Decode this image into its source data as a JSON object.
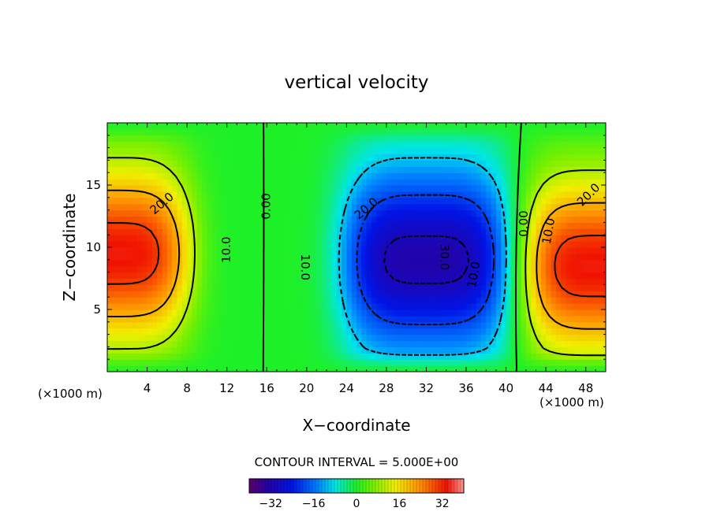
{
  "chart_data": {
    "type": "heatmap",
    "title": "vertical velocity",
    "xlabel": "X−coordinate",
    "ylabel": "Z−coordinate",
    "x_unit_left": "(×1000 m)",
    "x_unit_right": "(×1000 m)",
    "xlim": [
      0,
      50
    ],
    "ylim": [
      0,
      20
    ],
    "x_ticks": [
      4,
      8,
      12,
      16,
      20,
      24,
      28,
      32,
      36,
      40,
      44,
      48
    ],
    "y_ticks": [
      5,
      10,
      15
    ],
    "contour_interval_label": "CONTOUR INTERVAL = 5.000E+00",
    "contour_interval": 5,
    "contour_labels": [
      {
        "text": "20.0",
        "x": 5.5,
        "z": 13.5,
        "angle": -40
      },
      {
        "text": "10.0",
        "x": 12.0,
        "z": 9.8,
        "angle": -90
      },
      {
        "text": "0.00",
        "x": 16.0,
        "z": 13.3,
        "angle": -90
      },
      {
        "text": "10.0",
        "x": 19.8,
        "z": 8.4,
        "angle": 90
      },
      {
        "text": "20.0",
        "x": 26.0,
        "z": 13.1,
        "angle": -40
      },
      {
        "text": "30.0",
        "x": 33.8,
        "z": 9.2,
        "angle": 90
      },
      {
        "text": "10.0",
        "x": 36.8,
        "z": 7.8,
        "angle": -80
      },
      {
        "text": "0.00",
        "x": 41.8,
        "z": 11.9,
        "angle": -90
      },
      {
        "text": "10.0",
        "x": 44.3,
        "z": 11.3,
        "angle": -80
      },
      {
        "text": "20.0",
        "x": 48.3,
        "z": 14.2,
        "angle": -45
      }
    ],
    "colorbar": {
      "ticks": [
        -32,
        -16,
        0,
        16,
        32
      ],
      "tick_labels": [
        "−32",
        "−16",
        "0",
        "16",
        "32"
      ],
      "range": [
        -40,
        40
      ]
    },
    "field_centers": [
      {
        "x": 0.5,
        "z": 9.5,
        "value": 34,
        "note": "updraft"
      },
      {
        "x": 49.5,
        "z": 8.5,
        "value": 34,
        "note": "updraft"
      },
      {
        "x": 32.0,
        "z": 9.0,
        "value": -32,
        "note": "downdraft"
      }
    ]
  }
}
